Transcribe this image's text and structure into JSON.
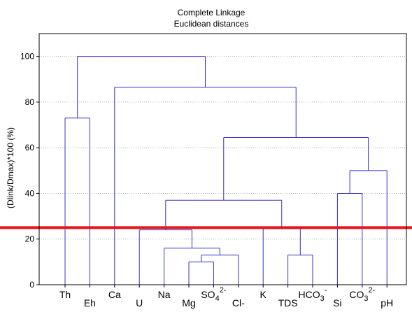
{
  "chart_data": {
    "type": "dendrogram",
    "title": "Complete Linkage",
    "subtitle": "Euclidean distances",
    "ylabel": "(Dlink/Dmax)*100 (%)",
    "xlabel": "",
    "ylim": [
      0,
      110
    ],
    "yticks": [
      0,
      20,
      40,
      60,
      80,
      100
    ],
    "grid": true,
    "leaves": [
      {
        "name": "Th",
        "sup": "",
        "drop": false
      },
      {
        "name": "Eh",
        "sup": "",
        "drop": true
      },
      {
        "name": "Ca",
        "sup": "",
        "drop": false
      },
      {
        "name": "U",
        "sup": "",
        "drop": true
      },
      {
        "name": "Na",
        "sup": "",
        "drop": false
      },
      {
        "name": "Mg",
        "sup": "",
        "drop": true
      },
      {
        "name": "SO4",
        "sup": "2-",
        "drop": false,
        "sub_last": true
      },
      {
        "name": "Cl-",
        "sup": "",
        "drop": true
      },
      {
        "name": "K",
        "sup": "",
        "drop": false
      },
      {
        "name": "TDS",
        "sup": "",
        "drop": true
      },
      {
        "name": "HCO3",
        "sup": "-",
        "drop": false,
        "sub_last": true
      },
      {
        "name": "Si",
        "sup": "",
        "drop": true
      },
      {
        "name": "CO3",
        "sup": "2-",
        "drop": false,
        "sub_last": true
      },
      {
        "name": "pH",
        "sup": "",
        "drop": true
      }
    ],
    "merges": [
      {
        "a": "L0",
        "b": "L1",
        "h": 73
      },
      {
        "a": "L5",
        "b": "L6",
        "h": 10
      },
      {
        "a": "L7",
        "b": "M1",
        "h": 13
      },
      {
        "a": "L4",
        "b": "M2",
        "h": 16
      },
      {
        "a": "L3",
        "b": "M3",
        "h": 24
      },
      {
        "a": "L9",
        "b": "L10",
        "h": 13
      },
      {
        "a": "L8",
        "b": "M5",
        "h": 24.5
      },
      {
        "a": "M4",
        "b": "M6",
        "h": 37
      },
      {
        "a": "L11",
        "b": "L12",
        "h": 40
      },
      {
        "a": "M8",
        "b": "L13",
        "h": 50
      },
      {
        "a": "M7",
        "b": "M9",
        "h": 64.5
      },
      {
        "a": "L2",
        "b": "M10",
        "h": 86.5
      },
      {
        "a": "M0",
        "b": "M11",
        "h": 100
      }
    ],
    "cutoff_line": {
      "value": 25,
      "color": "#e8141c"
    },
    "colors": {
      "branch": "#3333cc",
      "axis": "#000000",
      "grid": "#b0b0b0"
    }
  }
}
